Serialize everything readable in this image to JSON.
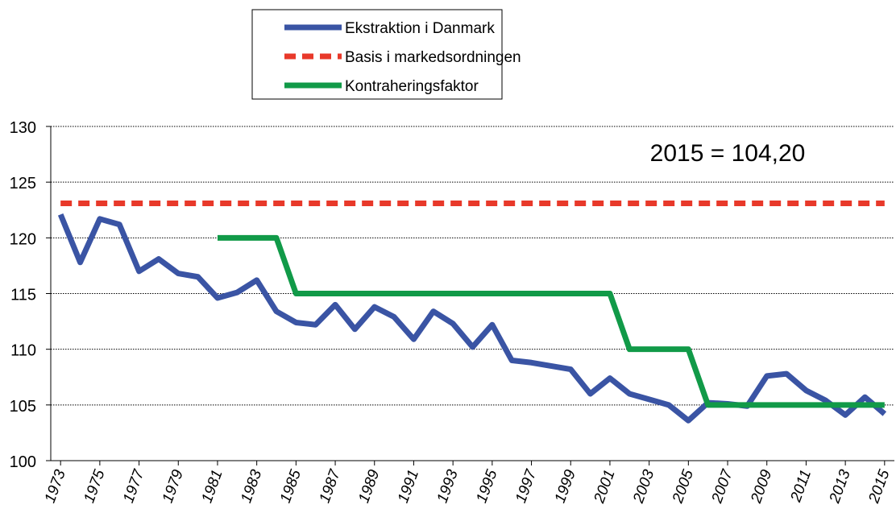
{
  "chart_data": {
    "type": "line",
    "annotation": "2015 = 104,20",
    "x": [
      1973,
      1974,
      1975,
      1976,
      1977,
      1978,
      1979,
      1980,
      1981,
      1982,
      1983,
      1984,
      1985,
      1986,
      1987,
      1988,
      1989,
      1990,
      1991,
      1992,
      1993,
      1994,
      1995,
      1996,
      1997,
      1998,
      1999,
      2000,
      2001,
      2002,
      2003,
      2004,
      2005,
      2006,
      2007,
      2008,
      2009,
      2010,
      2011,
      2012,
      2013,
      2014,
      2015
    ],
    "xlim": [
      1972.5,
      2015.5
    ],
    "xticks": [
      1973,
      1975,
      1977,
      1979,
      1981,
      1983,
      1985,
      1987,
      1989,
      1991,
      1993,
      1995,
      1997,
      1999,
      2001,
      2003,
      2005,
      2007,
      2009,
      2011,
      2013,
      2015
    ],
    "ylim": [
      100,
      130
    ],
    "yticks": [
      100,
      105,
      110,
      115,
      120,
      125,
      130
    ],
    "grid": true,
    "legend": "top",
    "series": [
      {
        "name": "Ekstraktion i Danmark",
        "color": "#3a54a4",
        "dash": "solid",
        "values": [
          122.1,
          117.8,
          121.7,
          121.2,
          117.0,
          118.1,
          116.8,
          116.5,
          114.6,
          115.1,
          116.2,
          113.4,
          112.4,
          112.2,
          114.0,
          111.8,
          113.8,
          112.9,
          110.9,
          113.4,
          112.3,
          110.2,
          112.2,
          109.0,
          108.8,
          108.5,
          108.2,
          106.0,
          107.4,
          106.0,
          105.5,
          105.0,
          103.6,
          105.2,
          105.1,
          104.9,
          107.6,
          107.8,
          106.3,
          105.4,
          104.1,
          105.7,
          104.2
        ]
      },
      {
        "name": "Basis i markedsordningen",
        "color": "#e8392a",
        "dash": "dashed",
        "values": [
          123.1,
          123.1,
          123.1,
          123.1,
          123.1,
          123.1,
          123.1,
          123.1,
          123.1,
          123.1,
          123.1,
          123.1,
          123.1,
          123.1,
          123.1,
          123.1,
          123.1,
          123.1,
          123.1,
          123.1,
          123.1,
          123.1,
          123.1,
          123.1,
          123.1,
          123.1,
          123.1,
          123.1,
          123.1,
          123.1,
          123.1,
          123.1,
          123.1,
          123.1,
          123.1,
          123.1,
          123.1,
          123.1,
          123.1,
          123.1,
          123.1,
          123.1,
          123.1
        ]
      },
      {
        "name": "Kontraheringsfaktor",
        "color": "#119a48",
        "dash": "solid",
        "values": [
          null,
          null,
          null,
          null,
          null,
          null,
          null,
          null,
          120,
          120,
          120,
          120,
          115,
          115,
          115,
          115,
          115,
          115,
          115,
          115,
          115,
          115,
          115,
          115,
          115,
          115,
          115,
          115,
          115,
          110,
          110,
          110,
          110,
          105,
          105,
          105,
          105,
          105,
          105,
          105,
          105,
          105,
          105
        ]
      }
    ]
  }
}
